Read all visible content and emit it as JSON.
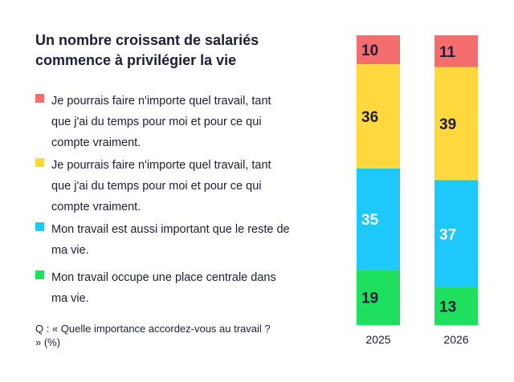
{
  "title": "Un nombre croissant de salariés commence à privilégier la vie",
  "legend": [
    {
      "label": "Je pourrais faire n'importe quel travail, tant que j'ai du temps pour moi et pour ce qui compte vraiment.",
      "color": "#f46d6d"
    },
    {
      "label": "Je pourrais faire n'importe quel travail, tant que j'ai du temps pour moi et pour ce qui compte vraiment.",
      "color": "#ffd83d"
    },
    {
      "label": "Mon travail est aussi important que le reste de ma vie.",
      "color": "#1ec8fa"
    },
    {
      "label": "Mon travail occupe une place centrale dans ma vie.",
      "color": "#1ee05e"
    }
  ],
  "question": "Q : « Quelle importance accordez-vous au travail ? » (%)",
  "chart_data": {
    "type": "bar",
    "stacked": true,
    "orientation": "vertical",
    "categories": [
      "2025",
      "2026"
    ],
    "series": [
      {
        "name": "Je pourrais faire n'importe quel travail, tant que j'ai du temps pour moi et pour ce qui compte vraiment.",
        "values": [
          10,
          11
        ],
        "color": "#f46d6d",
        "label_color": "#1f1d3a"
      },
      {
        "name": "Je pourrais faire n'importe quel travail, tant que j'ai du temps pour moi et pour ce qui compte vraiment.",
        "values": [
          36,
          39
        ],
        "color": "#ffd83d",
        "label_color": "#1f1d3a"
      },
      {
        "name": "Mon travail est aussi important que le reste de ma vie.",
        "values": [
          35,
          37
        ],
        "color": "#1ec8fa",
        "label_color": "#ffffff"
      },
      {
        "name": "Mon travail occupe une place centrale dans ma vie.",
        "values": [
          19,
          13
        ],
        "color": "#1ee05e",
        "label_color": "#1f1d3a"
      }
    ],
    "ylim": [
      0,
      100
    ],
    "grid": false
  }
}
